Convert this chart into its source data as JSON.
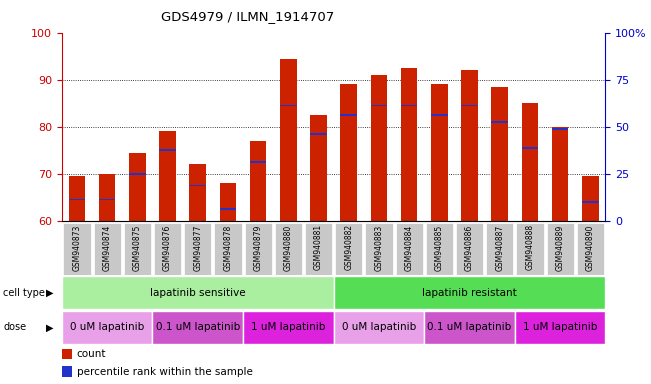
{
  "title": "GDS4979 / ILMN_1914707",
  "samples": [
    "GSM940873",
    "GSM940874",
    "GSM940875",
    "GSM940876",
    "GSM940877",
    "GSM940878",
    "GSM940879",
    "GSM940880",
    "GSM940881",
    "GSM940882",
    "GSM940883",
    "GSM940884",
    "GSM940885",
    "GSM940886",
    "GSM940887",
    "GSM940888",
    "GSM940889",
    "GSM940890"
  ],
  "bar_heights": [
    69.5,
    70.0,
    74.5,
    79.0,
    72.0,
    68.0,
    77.0,
    94.5,
    82.5,
    89.0,
    91.0,
    92.5,
    89.0,
    92.0,
    88.5,
    85.0,
    80.0,
    69.5
  ],
  "blue_positions": [
    64.5,
    64.5,
    70.0,
    75.0,
    67.5,
    62.5,
    72.5,
    84.5,
    78.5,
    82.5,
    84.5,
    84.5,
    82.5,
    84.5,
    81.0,
    75.5,
    79.5,
    64.0
  ],
  "ylim": [
    60,
    100
  ],
  "yticks_left": [
    60,
    70,
    80,
    90,
    100
  ],
  "yticks_right": [
    0,
    25,
    50,
    75,
    100
  ],
  "bar_color": "#cc2200",
  "blue_color": "#2233cc",
  "bar_width": 0.55,
  "grid_color": "#000000",
  "cell_type_groups": [
    {
      "text": "lapatinib sensitive",
      "start": 0,
      "end": 9,
      "color": "#aaeea0"
    },
    {
      "text": "lapatinib resistant",
      "start": 9,
      "end": 18,
      "color": "#55dd55"
    }
  ],
  "dose_groups": [
    {
      "text": "0 uM lapatinib",
      "start": 0,
      "end": 3,
      "color": "#e8a0e8"
    },
    {
      "text": "0.1 uM lapatinib",
      "start": 3,
      "end": 6,
      "color": "#cc55cc"
    },
    {
      "text": "1 uM lapatinib",
      "start": 6,
      "end": 9,
      "color": "#dd22dd"
    },
    {
      "text": "0 uM lapatinib",
      "start": 9,
      "end": 12,
      "color": "#e8a0e8"
    },
    {
      "text": "0.1 uM lapatinib",
      "start": 12,
      "end": 15,
      "color": "#cc55cc"
    },
    {
      "text": "1 uM lapatinib",
      "start": 15,
      "end": 18,
      "color": "#dd22dd"
    }
  ],
  "legend_items": [
    {
      "color": "#cc2200",
      "label": "count"
    },
    {
      "color": "#2233cc",
      "label": "percentile rank within the sample"
    }
  ],
  "bg_color": "#ffffff",
  "tick_bg_color": "#c8c8c8",
  "right_axis_color": "#0000cc",
  "left_axis_color": "#cc0000"
}
